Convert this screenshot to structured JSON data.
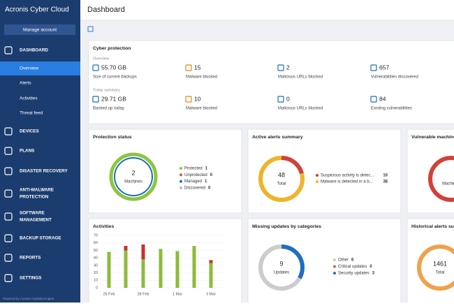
{
  "sidebar": {
    "logo": "Acronis Cyber Cloud",
    "button": "Manage account",
    "menu": [
      {
        "lines": [
          "DASHBOARD"
        ],
        "children": [
          "Overview",
          "Alerts",
          "Activities",
          "Threat feed"
        ]
      },
      {
        "lines": [
          "DEVICES"
        ]
      },
      {
        "lines": [
          "PLANS"
        ]
      },
      {
        "lines": [
          "DISASTER RECOVERY"
        ]
      },
      {
        "lines": [
          "ANTI-MALWARE",
          "PROTECTION"
        ]
      },
      {
        "lines": [
          "SOFTWARE",
          "MANAGEMENT"
        ]
      },
      {
        "lines": [
          "BACKUP STORAGE"
        ]
      },
      {
        "lines": [
          "REPORTS"
        ]
      },
      {
        "lines": [
          "SETTINGS"
        ]
      }
    ],
    "footer": "Powered by Acronis AnyData Engine"
  },
  "header": {
    "title": "Dashboard"
  },
  "cyber_protection": {
    "title": "Cyber protection",
    "overview_label": "Overview",
    "overview": [
      {
        "value": "55.70 GB",
        "label": "Size of current backups"
      },
      {
        "value": "15",
        "label": "Malware blocked"
      },
      {
        "value": "2",
        "label": "Malicious URLs blocked"
      },
      {
        "value": "657",
        "label": "Vulnerabilities discovered"
      }
    ],
    "today_label": "Today summary",
    "today": [
      {
        "value": "29.71 GB",
        "label": "Backed up today"
      },
      {
        "value": "10",
        "label": "Malware blocked"
      },
      {
        "value": "0",
        "label": "Malicious URLs blocked"
      },
      {
        "value": "84",
        "label": "Existing vulnerabilities"
      }
    ]
  },
  "protection_status": {
    "title": "Protection status",
    "total": 2,
    "center_label": "Machines",
    "legend": [
      {
        "name": "Protected",
        "value": 1,
        "color": "#8cc63f"
      },
      {
        "name": "Unprotected",
        "value": 0,
        "color": "#d9534f"
      },
      {
        "name": "Managed",
        "value": 1,
        "color": "#1f6fbf"
      },
      {
        "name": "Discovered",
        "value": 0,
        "color": "#bbbbbb"
      }
    ]
  },
  "active_alerts": {
    "title": "Active alerts summary",
    "total": 48,
    "center_label": "Total",
    "legend": [
      {
        "name": "Suspicious activity is detec...",
        "value": 10,
        "color": "#d2413a"
      },
      {
        "name": "Malware is detected in a b...",
        "value": 38,
        "color": "#f0b42a"
      }
    ]
  },
  "vulnerable_machines": {
    "title": "Vulnerable machines",
    "center_label": "Machines"
  },
  "activities": {
    "title": "Activities",
    "ylim": [
      0,
      70
    ],
    "yticks": [
      0,
      10,
      20,
      30,
      40,
      50,
      60,
      70
    ],
    "categories": [
      "26 Feb",
      null,
      "28 Feb",
      null,
      "1 Mar",
      null,
      "3 Mar"
    ],
    "series": [
      {
        "color": "#8cbb3a",
        "values": [
          48,
          50,
          38,
          52,
          49,
          56,
          33
        ]
      },
      {
        "color": "#c9302c",
        "values": [
          0,
          6,
          20,
          0,
          0,
          0,
          4
        ]
      }
    ]
  },
  "missing_updates": {
    "title": "Missing updates by categories",
    "total": 9,
    "center_label": "Updates",
    "legend": [
      {
        "name": "Other",
        "value": 6,
        "color": "#cccccc"
      },
      {
        "name": "Critical updates",
        "value": 0,
        "color": "#e05c4b"
      },
      {
        "name": "Security updates",
        "value": 3,
        "color": "#1f6fbf"
      }
    ]
  },
  "historical_alerts": {
    "title": "Historical alerts summary",
    "total": 1461,
    "center_label": "Total"
  }
}
